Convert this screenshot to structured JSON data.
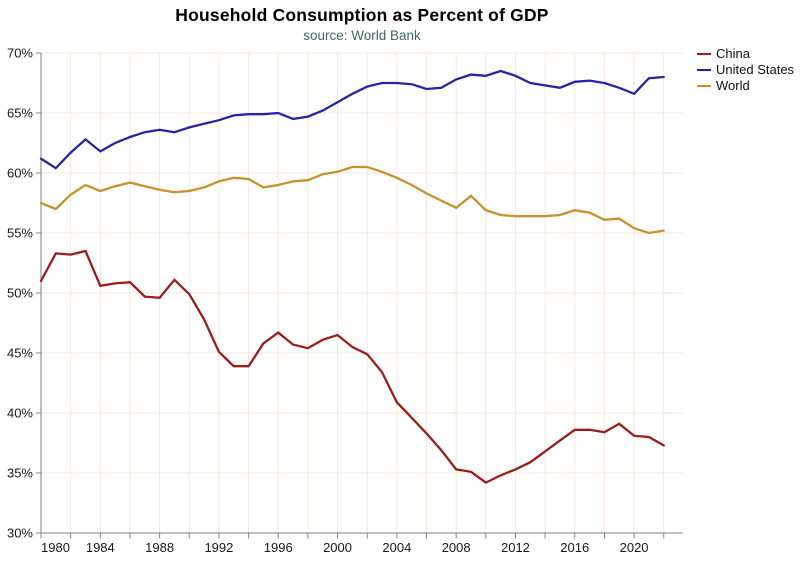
{
  "chart_data": {
    "type": "line",
    "title": "Household Consumption as Percent of GDP",
    "subtitle": "source: World Bank",
    "xlabel": "",
    "ylabel": "",
    "xlim": [
      1980,
      2023.3
    ],
    "ylim": [
      30,
      70
    ],
    "grid": true,
    "legend_position": "top-right",
    "y_ticks": [
      30,
      35,
      40,
      45,
      50,
      55,
      60,
      65,
      70
    ],
    "y_tick_suffix": "%",
    "x_labeled_ticks": [
      1980,
      1984,
      1988,
      1992,
      1996,
      2000,
      2004,
      2008,
      2012,
      2016,
      2020
    ],
    "x_minor_tick_step": 2,
    "x": [
      1980,
      1981,
      1982,
      1983,
      1984,
      1985,
      1986,
      1987,
      1988,
      1989,
      1990,
      1991,
      1992,
      1993,
      1994,
      1995,
      1996,
      1997,
      1998,
      1999,
      2000,
      2001,
      2002,
      2003,
      2004,
      2005,
      2006,
      2007,
      2008,
      2009,
      2010,
      2011,
      2012,
      2013,
      2014,
      2015,
      2016,
      2017,
      2018,
      2019,
      2020,
      2021,
      2022
    ],
    "series": [
      {
        "name": "China",
        "color": "#9B1C1C",
        "values": [
          51.0,
          53.3,
          53.2,
          53.5,
          50.6,
          50.8,
          50.9,
          49.7,
          49.6,
          51.1,
          49.9,
          47.8,
          45.1,
          43.9,
          43.9,
          45.8,
          46.7,
          45.7,
          45.4,
          46.1,
          46.5,
          45.5,
          44.9,
          43.4,
          40.9,
          39.6,
          38.3,
          36.9,
          35.3,
          35.1,
          34.2,
          34.8,
          35.3,
          35.9,
          36.8,
          37.7,
          38.6,
          38.6,
          38.4,
          39.1,
          38.1,
          38.0,
          37.3
        ]
      },
      {
        "name": "United States",
        "color": "#2424A8",
        "values": [
          61.2,
          60.4,
          61.7,
          62.8,
          61.8,
          62.5,
          63.0,
          63.4,
          63.6,
          63.4,
          63.8,
          64.1,
          64.4,
          64.8,
          64.9,
          64.9,
          65.0,
          64.5,
          64.7,
          65.2,
          65.9,
          66.6,
          67.2,
          67.5,
          67.5,
          67.4,
          67.0,
          67.1,
          67.8,
          68.2,
          68.1,
          68.5,
          68.1,
          67.5,
          67.3,
          67.1,
          67.6,
          67.7,
          67.5,
          67.1,
          66.6,
          67.9,
          68.0
        ]
      },
      {
        "name": "World",
        "color": "#C6922B",
        "values": [
          57.5,
          57.0,
          58.2,
          59.0,
          58.5,
          58.9,
          59.2,
          58.9,
          58.6,
          58.4,
          58.5,
          58.8,
          59.3,
          59.6,
          59.5,
          58.8,
          59.0,
          59.3,
          59.4,
          59.9,
          60.1,
          60.5,
          60.5,
          60.1,
          59.6,
          59.0,
          58.3,
          57.7,
          57.1,
          58.1,
          56.9,
          56.5,
          56.4,
          56.4,
          56.4,
          56.5,
          56.9,
          56.7,
          56.1,
          56.2,
          55.4,
          55.0,
          55.2
        ]
      }
    ],
    "colors": {
      "grid": "#F8E7DF",
      "axis": "#828282",
      "tick_label": "#191919",
      "title": "#000000",
      "subtitle": "#3F6666"
    }
  }
}
